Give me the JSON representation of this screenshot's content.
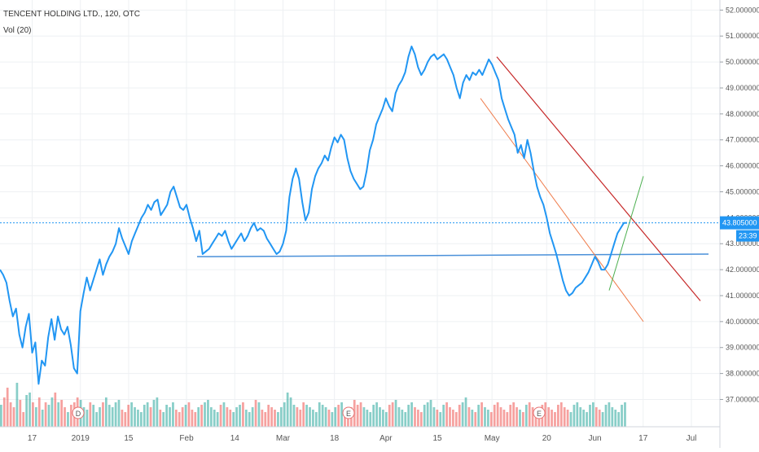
{
  "header": {
    "title": "TENCENT HOLDING LTD., 120, OTC",
    "volume_label": "Vol (20)"
  },
  "price_tag": {
    "value": "43.805000",
    "timer": "23:39"
  },
  "markers": [
    "D",
    "E",
    "E"
  ],
  "colors": {
    "price_line": "#2196f3",
    "volume_up": "#26a69a",
    "volume_down": "#ef5350",
    "red_trend": "#c62828",
    "channel_line": "#ef7b4a",
    "green_trend": "#4caf50",
    "support_line": "#4a90d9",
    "last_price": "#2196f3"
  },
  "chart_data": {
    "type": "line",
    "title": "TENCENT HOLDING LTD., 120, OTC",
    "ylim": [
      36.5,
      52.2
    ],
    "y_ticks": [
      "37.000000",
      "38.000000",
      "39.000000",
      "40.000000",
      "41.000000",
      "42.000000",
      "43.000000",
      "44.000000",
      "45.000000",
      "46.000000",
      "47.000000",
      "48.000000",
      "49.000000",
      "50.000000",
      "51.000000",
      "52.000000"
    ],
    "x_ticks": [
      "17",
      "2019",
      "15",
      "Feb",
      "14",
      "Mar",
      "18",
      "Apr",
      "15",
      "May",
      "20",
      "Jun",
      "17",
      "Jul"
    ],
    "x_tick_index": [
      10,
      25,
      40,
      58,
      73,
      88,
      104,
      120,
      136,
      153,
      170,
      185,
      200,
      215
    ],
    "last_price": 43.805,
    "series": [
      {
        "values": [
          42.0,
          41.8,
          41.5,
          40.8,
          40.2,
          40.5,
          39.5,
          39.0,
          39.8,
          40.3,
          38.8,
          39.2,
          37.6,
          38.5,
          38.3,
          39.4,
          40.1,
          39.3,
          40.2,
          39.7,
          39.5,
          39.8,
          39.1,
          38.2,
          38.0,
          40.4,
          41.1,
          41.7,
          41.2,
          41.6,
          42.0,
          42.4,
          41.8,
          42.2,
          42.5,
          42.7,
          43.0,
          43.6,
          43.2,
          42.9,
          42.6,
          43.1,
          43.4,
          43.7,
          44.0,
          44.2,
          44.5,
          44.3,
          44.6,
          44.7,
          44.1,
          44.3,
          44.5,
          45.0,
          45.2,
          44.8,
          44.4,
          44.3,
          44.5,
          44.0,
          43.6,
          43.1,
          43.5,
          42.6,
          42.7,
          42.8,
          43.0,
          43.2,
          43.4,
          43.3,
          43.5,
          43.1,
          42.8,
          43.0,
          43.2,
          43.4,
          43.1,
          43.3,
          43.6,
          43.8,
          43.5,
          43.6,
          43.5,
          43.2,
          43.0,
          42.8,
          42.6,
          42.7,
          43.0,
          43.5,
          44.8,
          45.5,
          45.9,
          45.5,
          44.6,
          43.9,
          44.2,
          45.1,
          45.6,
          45.9,
          46.1,
          46.4,
          46.2,
          46.7,
          47.1,
          46.9,
          47.2,
          47.0,
          46.3,
          45.8,
          45.5,
          45.3,
          45.1,
          45.2,
          45.8,
          46.6,
          47.0,
          47.6,
          47.9,
          48.2,
          48.6,
          48.3,
          48.1,
          48.8,
          49.1,
          49.3,
          49.6,
          50.2,
          50.6,
          50.3,
          49.8,
          49.5,
          49.7,
          50.0,
          50.2,
          50.3,
          50.1,
          50.2,
          50.3,
          50.1,
          49.8,
          49.5,
          49.0,
          48.6,
          49.2,
          49.5,
          49.3,
          49.6,
          49.5,
          49.7,
          49.5,
          49.8,
          50.1,
          49.9,
          49.6,
          49.3,
          48.6,
          48.2,
          47.8,
          47.5,
          47.2,
          46.5,
          46.8,
          46.3,
          47.0,
          46.5,
          45.8,
          45.2,
          44.8,
          44.5,
          44.0,
          43.4,
          43.0,
          42.6,
          42.1,
          41.6,
          41.2,
          41.0,
          41.1,
          41.3,
          41.4,
          41.5,
          41.7,
          41.9,
          42.2,
          42.5,
          42.3,
          42.0,
          42.0,
          42.2,
          42.6,
          43.0,
          43.4,
          43.6,
          43.8,
          43.805
        ]
      }
    ],
    "volume": {
      "label": "Vol (20)",
      "values": [
        0.45,
        0.6,
        0.8,
        0.5,
        0.4,
        0.9,
        0.55,
        0.3,
        0.65,
        0.7,
        0.5,
        0.4,
        0.6,
        0.35,
        0.5,
        0.45,
        0.6,
        0.7,
        0.5,
        0.55,
        0.4,
        0.3,
        0.45,
        0.5,
        0.6,
        0.55,
        0.4,
        0.35,
        0.5,
        0.45,
        0.3,
        0.4,
        0.5,
        0.6,
        0.45,
        0.4,
        0.5,
        0.55,
        0.35,
        0.3,
        0.45,
        0.5,
        0.4,
        0.35,
        0.3,
        0.45,
        0.5,
        0.4,
        0.55,
        0.6,
        0.35,
        0.3,
        0.45,
        0.4,
        0.5,
        0.35,
        0.3,
        0.4,
        0.45,
        0.5,
        0.35,
        0.3,
        0.4,
        0.45,
        0.5,
        0.55,
        0.4,
        0.35,
        0.3,
        0.45,
        0.5,
        0.4,
        0.35,
        0.3,
        0.4,
        0.45,
        0.5,
        0.35,
        0.3,
        0.4,
        0.55,
        0.5,
        0.35,
        0.3,
        0.45,
        0.4,
        0.35,
        0.3,
        0.4,
        0.5,
        0.7,
        0.6,
        0.45,
        0.4,
        0.35,
        0.5,
        0.45,
        0.4,
        0.35,
        0.3,
        0.5,
        0.45,
        0.4,
        0.35,
        0.3,
        0.4,
        0.45,
        0.5,
        0.35,
        0.3,
        0.4,
        0.55,
        0.45,
        0.5,
        0.4,
        0.35,
        0.3,
        0.45,
        0.5,
        0.4,
        0.35,
        0.3,
        0.45,
        0.5,
        0.55,
        0.4,
        0.35,
        0.3,
        0.45,
        0.5,
        0.4,
        0.35,
        0.3,
        0.45,
        0.5,
        0.55,
        0.4,
        0.35,
        0.3,
        0.45,
        0.5,
        0.4,
        0.35,
        0.3,
        0.45,
        0.5,
        0.6,
        0.4,
        0.35,
        0.3,
        0.45,
        0.5,
        0.4,
        0.35,
        0.3,
        0.45,
        0.5,
        0.4,
        0.35,
        0.3,
        0.45,
        0.5,
        0.4,
        0.35,
        0.3,
        0.45,
        0.5,
        0.4,
        0.35,
        0.3,
        0.45,
        0.5,
        0.4,
        0.35,
        0.3,
        0.45,
        0.5,
        0.4,
        0.35,
        0.3,
        0.45,
        0.5,
        0.4,
        0.35,
        0.3,
        0.45,
        0.5,
        0.4,
        0.35,
        0.3,
        0.45,
        0.5,
        0.4,
        0.35,
        0.3,
        0.45,
        0.5
      ]
    }
  }
}
